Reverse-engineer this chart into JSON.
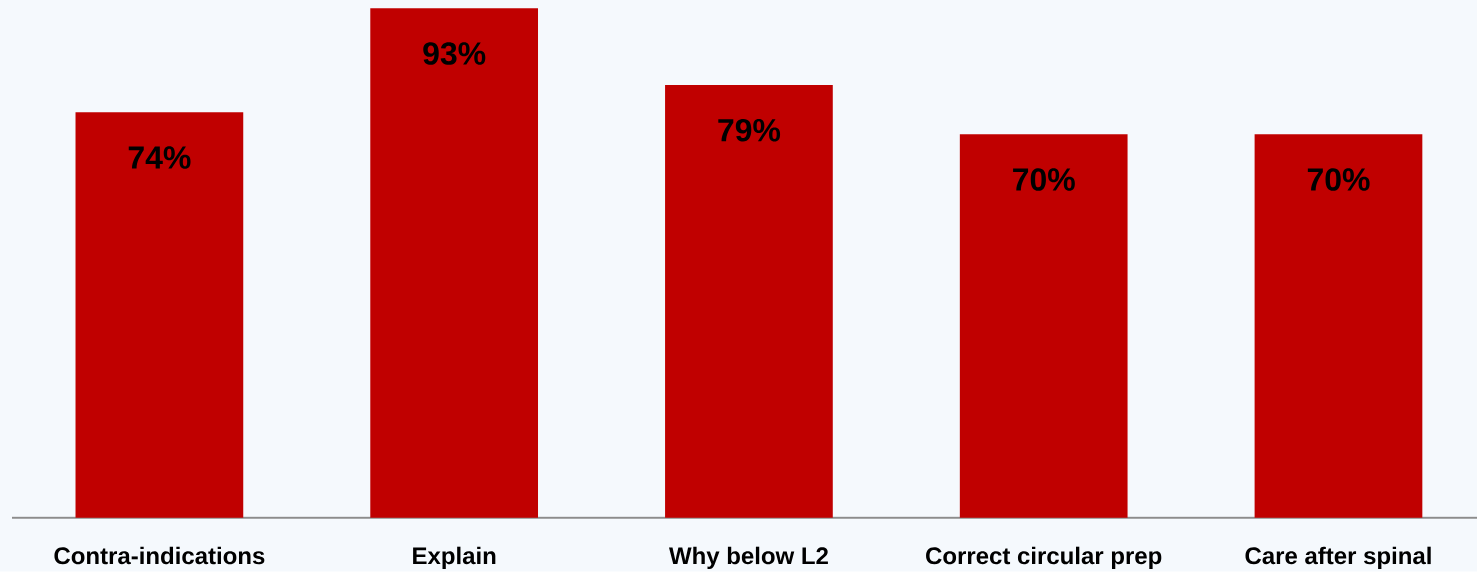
{
  "chart_data": {
    "type": "bar",
    "categories": [
      "Contra-indications",
      "Explain",
      "Why below L2",
      "Correct circular prep",
      "Care after spinal"
    ],
    "values": [
      74,
      93,
      79,
      70,
      70
    ],
    "value_labels": [
      "74%",
      "93%",
      "79%",
      "70%",
      "70%"
    ],
    "color": "#c00000",
    "ylim": [
      0,
      94.5
    ],
    "tick_labels": "x"
  }
}
